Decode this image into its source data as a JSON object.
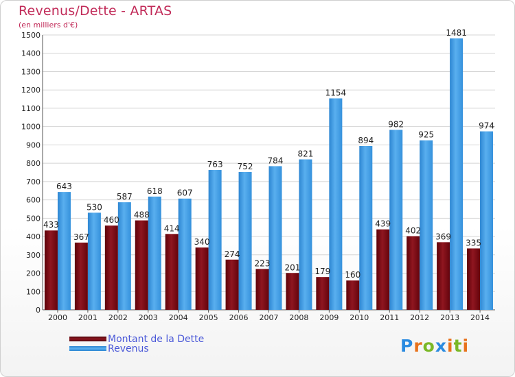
{
  "title": "Revenus/Dette - ARTAS",
  "subtitle": "(en milliers d'€)",
  "colors": {
    "dette": "#7a0a12",
    "revenus": "#3f9ae2",
    "title": "#c12a58",
    "legend_text": "#4a58d8"
  },
  "legend": {
    "dette_label": "Montant de la Dette",
    "revenus_label": "Revenus"
  },
  "logo": {
    "text": "Proxiti"
  },
  "chart_data": {
    "type": "bar",
    "categories": [
      "2000",
      "2001",
      "2002",
      "2003",
      "2004",
      "2005",
      "2006",
      "2007",
      "2008",
      "2009",
      "2010",
      "2011",
      "2012",
      "2013",
      "2014"
    ],
    "series": [
      {
        "name": "Montant de la Dette",
        "values": [
          433,
          367,
          460,
          488,
          414,
          340,
          274,
          223,
          201,
          179,
          160,
          439,
          402,
          369,
          335
        ]
      },
      {
        "name": "Revenus",
        "values": [
          643,
          530,
          587,
          618,
          607,
          763,
          752,
          784,
          821,
          1154,
          894,
          982,
          925,
          1481,
          974
        ]
      }
    ],
    "title": "Revenus/Dette - ARTAS",
    "ylabel": "(en milliers d'€)",
    "ylim": [
      0,
      1500
    ],
    "yticks": [
      0,
      100,
      200,
      300,
      400,
      500,
      600,
      700,
      800,
      900,
      1000,
      1100,
      1200,
      1300,
      1400,
      1500
    ],
    "grid": true,
    "legend_position": "bottom-left"
  }
}
